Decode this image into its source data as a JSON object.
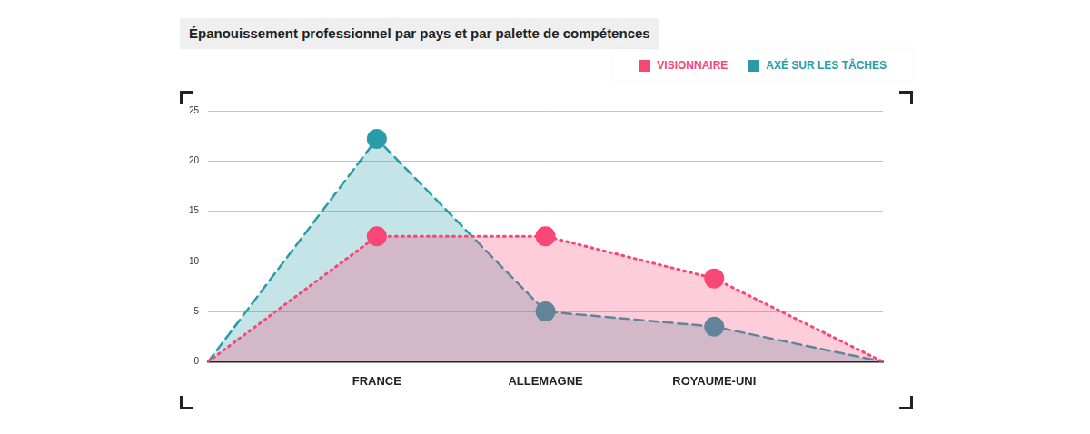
{
  "chart_data": {
    "type": "area",
    "title": "Épanouissement professionnel par pays et par palette de compétences",
    "categories": [
      null,
      "FRANCE",
      "ALLEMAGNE",
      "ROYAUME-UNI",
      null
    ],
    "series": [
      {
        "name": "VISIONNAIRE",
        "color": "#f74776",
        "values": [
          0,
          12.5,
          12.5,
          8.3,
          0
        ],
        "line_style": "dotted",
        "marker": "circle"
      },
      {
        "name": "AXÉ SUR LES TÂCHES",
        "color": "#2a9ca8",
        "values": [
          0,
          22.2,
          5,
          3.5,
          0
        ],
        "line_style": "dashed",
        "marker": "circle"
      }
    ],
    "ylim": [
      0,
      25
    ],
    "yticks": [
      0,
      5,
      10,
      15,
      20,
      25
    ],
    "grid": true,
    "legend": "top right"
  }
}
